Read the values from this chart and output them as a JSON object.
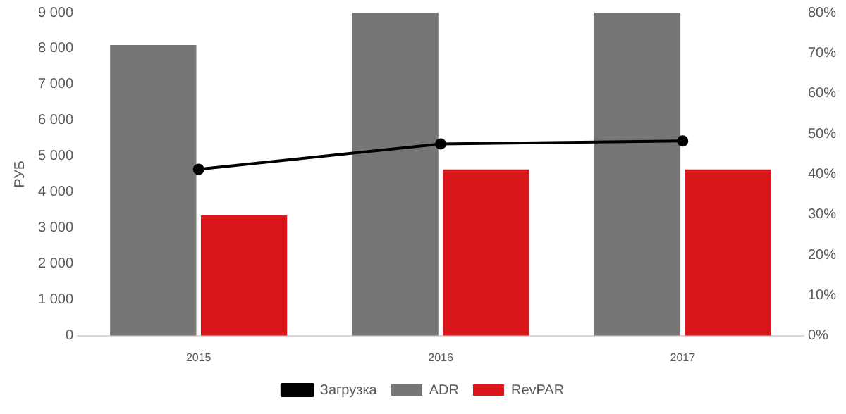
{
  "chart_data": {
    "type": "bar",
    "ylabel": "РУБ",
    "categories": [
      "2015",
      "2016",
      "2017"
    ],
    "series": [
      {
        "name": "ADR",
        "color": "#767676",
        "values": [
          8100,
          9000,
          9000
        ]
      },
      {
        "name": "RevPAR",
        "color": "#d9161a",
        "values": [
          3350,
          4630,
          4630
        ]
      },
      {
        "name": "Загрузка",
        "type": "line",
        "axis": "y2",
        "color": "#000000",
        "values": [
          41.2,
          47.5,
          48.2
        ]
      }
    ],
    "ylim": [
      0,
      9000
    ],
    "yticks": [
      0,
      {
        "value": 1000,
        "label": "1 000"
      },
      {
        "value": 2000,
        "label": "2 000"
      },
      {
        "value": 3000,
        "label": "3 000"
      },
      {
        "value": 4000,
        "label": "4 000"
      },
      {
        "value": 5000,
        "label": "5 000"
      },
      {
        "value": 6000,
        "label": "6 000"
      },
      {
        "value": 7000,
        "label": "7 000"
      },
      {
        "value": 8000,
        "label": "8 000"
      },
      {
        "value": 9000,
        "label": "9 000"
      }
    ],
    "y2lim": [
      0,
      80
    ],
    "y2ticks": [
      {
        "value": 0,
        "label": "0%"
      },
      {
        "value": 10,
        "label": "10%"
      },
      {
        "value": 20,
        "label": "20%"
      },
      {
        "value": 30,
        "label": "30%"
      },
      {
        "value": 40,
        "label": "40%"
      },
      {
        "value": 50,
        "label": "50%"
      },
      {
        "value": 60,
        "label": "60%"
      },
      {
        "value": 70,
        "label": "70%"
      },
      {
        "value": 80,
        "label": "80%"
      }
    ],
    "legend": "bottom",
    "marker": "circle",
    "grid": false
  }
}
